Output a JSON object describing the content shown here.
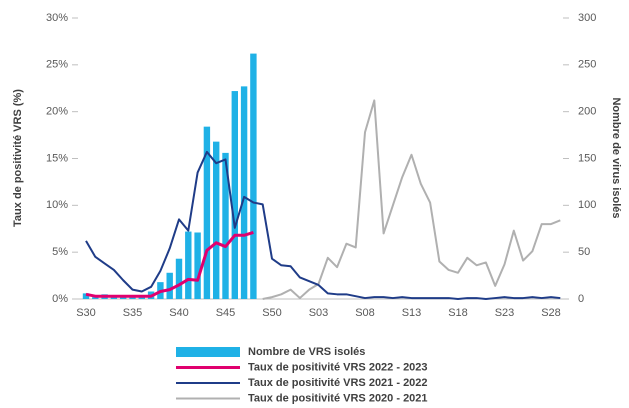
{
  "chart_data": {
    "type": "bar",
    "y_label": "Taux de positivité VRS (%)",
    "y2_label": "Nombre de virus isolés",
    "categories": [
      "S30",
      null,
      null,
      null,
      null,
      "S35",
      null,
      null,
      null,
      null,
      "S40",
      null,
      null,
      null,
      null,
      "S45",
      null,
      null,
      null,
      null,
      "S50",
      null,
      null,
      null,
      null,
      "S03",
      null,
      null,
      null,
      null,
      "S08",
      null,
      null,
      null,
      null,
      "S13",
      null,
      null,
      null,
      null,
      "S18",
      null,
      null,
      null,
      null,
      "S23",
      null,
      null,
      null,
      null,
      "S28",
      null
    ],
    "ylim": [
      0,
      30
    ],
    "yticks": [
      {
        "value": 0,
        "label": "0%"
      },
      {
        "value": 5,
        "label": "5%"
      },
      {
        "value": 10,
        "label": "10%"
      },
      {
        "value": 15,
        "label": "15%"
      },
      {
        "value": 20,
        "label": "20%"
      },
      {
        "value": 25,
        "label": "25%"
      },
      {
        "value": 30,
        "label": "30%"
      }
    ],
    "y2lim": [
      0,
      300
    ],
    "y2ticks": [
      0,
      50,
      100,
      150,
      200,
      250,
      300
    ],
    "series": [
      {
        "name": "Nombre de VRS isolés",
        "type": "bar",
        "axis": "y2",
        "color": "#1fb1e6",
        "values": [
          6,
          2,
          5,
          2,
          2,
          2,
          3,
          8,
          18,
          28,
          43,
          72,
          71,
          184,
          168,
          156,
          222,
          227,
          262,
          null,
          null,
          null,
          null,
          null,
          null,
          null,
          null,
          null,
          null,
          null,
          null,
          null,
          null,
          null,
          null,
          null,
          null,
          null,
          null,
          null,
          null,
          null,
          null,
          null,
          null,
          null,
          null,
          null,
          null,
          null,
          null,
          null
        ]
      },
      {
        "name": "Taux de positivité VRS 2022 - 2023",
        "type": "line",
        "color": "#e0006e",
        "values": [
          0.5,
          0.3,
          0.3,
          0.3,
          0.3,
          0.3,
          0.3,
          0.3,
          0.8,
          1.0,
          1.5,
          2.1,
          2.0,
          5.2,
          6.0,
          5.6,
          6.8,
          6.8,
          7.1,
          null,
          null,
          null,
          null,
          null,
          null,
          null,
          null,
          null,
          null,
          null,
          null,
          null,
          null,
          null,
          null,
          null,
          null,
          null,
          null,
          null,
          null,
          null,
          null,
          null,
          null,
          null,
          null,
          null,
          null,
          null,
          null,
          null
        ]
      },
      {
        "name": "Taux de positivité VRS 2021 - 2022",
        "type": "line",
        "color": "#1f3c88",
        "values": [
          6.2,
          4.5,
          3.8,
          3.1,
          2.0,
          1.0,
          0.8,
          1.3,
          3.0,
          5.4,
          8.5,
          7.3,
          13.5,
          15.7,
          14.5,
          14.9,
          7.6,
          10.9,
          10.3,
          10.1,
          4.3,
          3.6,
          3.5,
          2.3,
          1.9,
          1.5,
          0.6,
          0.5,
          0.5,
          0.3,
          0.1,
          0.2,
          0.2,
          0.1,
          0.2,
          0.1,
          0.1,
          0.1,
          0.1,
          0.1,
          0.0,
          0.1,
          0.1,
          0.0,
          0.1,
          0.2,
          0.1,
          0.1,
          0.2,
          0.1,
          0.2,
          0.1
        ]
      },
      {
        "name": "Taux de positivité VRS 2020 - 2021",
        "type": "line",
        "color": "#b0b0b0",
        "values": [
          null,
          null,
          null,
          null,
          null,
          null,
          null,
          null,
          null,
          null,
          null,
          null,
          null,
          null,
          null,
          null,
          null,
          null,
          null,
          0.0,
          0.2,
          0.5,
          1.0,
          0.1,
          1.0,
          1.6,
          4.4,
          3.4,
          5.9,
          5.5,
          17.8,
          21.2,
          7.0,
          10.0,
          13.0,
          15.4,
          12.3,
          10.3,
          4.0,
          3.1,
          2.8,
          4.4,
          3.6,
          3.9,
          1.4,
          3.7,
          7.3,
          4.1,
          5.1,
          8.0,
          8.0,
          8.4
        ]
      }
    ]
  }
}
